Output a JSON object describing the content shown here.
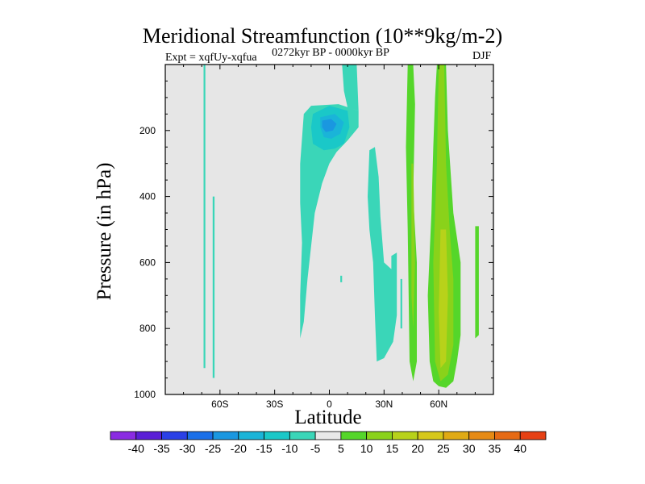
{
  "chart_data": {
    "type": "contour",
    "title": "Meridional Streamfunction (10**9kg/m-2)",
    "subtitle_left": "Expt = xqfUy-xqfua",
    "subtitle_center": "0272kyr BP - 0000kyr BP",
    "subtitle_right": "DJF",
    "xlabel": "Latitude",
    "ylabel": "Pressure (in hPa)",
    "xlim": [
      -90,
      90
    ],
    "ylim": [
      1000,
      0
    ],
    "x_ticks": [
      {
        "value": -60,
        "label": "60S"
      },
      {
        "value": -30,
        "label": "30S"
      },
      {
        "value": 0,
        "label": "0"
      },
      {
        "value": 30,
        "label": "30N"
      },
      {
        "value": 60,
        "label": "60N"
      }
    ],
    "y_ticks": [
      {
        "value": 200,
        "label": "200"
      },
      {
        "value": 400,
        "label": "400"
      },
      {
        "value": 600,
        "label": "600"
      },
      {
        "value": 800,
        "label": "800"
      },
      {
        "value": 1000,
        "label": "1000"
      }
    ],
    "background_color": "#e6e6e6",
    "colorbar": {
      "colors": [
        "#8a2be2",
        "#5a1fd6",
        "#2a40e6",
        "#1a6fe8",
        "#1a97e0",
        "#1ab4d8",
        "#1ac8c8",
        "#3ad6b8",
        "#e8e8e8",
        "#55d62a",
        "#8ad21a",
        "#b8d21a",
        "#d6c81a",
        "#e0aa14",
        "#e68a14",
        "#e66a14",
        "#e64014"
      ],
      "labels": [
        "-40",
        "-35",
        "-30",
        "-25",
        "-20",
        "-15",
        "-10",
        "-5",
        "5",
        "10",
        "15",
        "20",
        "25",
        "30",
        "35",
        "40"
      ]
    },
    "regions": [
      {
        "name": "sh-high-lat-cell-a",
        "color": "#3ad6b8",
        "points": [
          [
            -69,
            0
          ],
          [
            -68,
            0
          ],
          [
            -68,
            920
          ],
          [
            -69,
            920
          ]
        ]
      },
      {
        "name": "sh-high-lat-cell-b",
        "color": "#3ad6b8",
        "points": [
          [
            -64,
            400
          ],
          [
            -63,
            400
          ],
          [
            -63,
            950
          ],
          [
            -64,
            950
          ]
        ]
      },
      {
        "name": "tropical-upper-cell",
        "color": "#3ad6b8",
        "points": [
          [
            -14,
            150
          ],
          [
            -10,
            125
          ],
          [
            5,
            120
          ],
          [
            16,
            140
          ],
          [
            16,
            190
          ],
          [
            10,
            230
          ],
          [
            4,
            265
          ],
          [
            0,
            300
          ],
          [
            -4,
            360
          ],
          [
            -8,
            450
          ],
          [
            -12,
            650
          ],
          [
            -14,
            780
          ],
          [
            -16,
            830
          ],
          [
            -16,
            700
          ],
          [
            -15,
            540
          ],
          [
            -16,
            420
          ],
          [
            -16,
            300
          ]
        ]
      },
      {
        "name": "tropical-upper-strat-tail",
        "color": "#3ad6b8",
        "points": [
          [
            7,
            0
          ],
          [
            15,
            0
          ],
          [
            16,
            140
          ],
          [
            10,
            130
          ],
          [
            8,
            80
          ]
        ]
      },
      {
        "name": "tropical-core-minus10",
        "color": "#1ac8c8",
        "points": [
          [
            -9,
            150
          ],
          [
            0,
            125
          ],
          [
            10,
            140
          ],
          [
            11,
            190
          ],
          [
            8,
            240
          ],
          [
            3,
            255
          ],
          [
            -3,
            260
          ],
          [
            -9,
            240
          ],
          [
            -10,
            190
          ]
        ]
      },
      {
        "name": "tropical-core-minus15",
        "color": "#1ab4d8",
        "points": [
          [
            -5,
            160
          ],
          [
            3,
            150
          ],
          [
            8,
            175
          ],
          [
            6,
            210
          ],
          [
            1,
            225
          ],
          [
            -3,
            220
          ],
          [
            -5,
            190
          ]
        ]
      },
      {
        "name": "tropical-core-minus20",
        "color": "#1a97e0",
        "points": [
          [
            -4,
            170
          ],
          [
            1,
            165
          ],
          [
            4,
            180
          ],
          [
            2,
            200
          ],
          [
            -2,
            205
          ],
          [
            -4,
            190
          ]
        ]
      },
      {
        "name": "nh-subtropical-cell",
        "color": "#3ad6b8",
        "points": [
          [
            22,
            260
          ],
          [
            25,
            250
          ],
          [
            27,
            340
          ],
          [
            28,
            460
          ],
          [
            30,
            600
          ],
          [
            34,
            620
          ],
          [
            34,
            580
          ],
          [
            37,
            570
          ],
          [
            37,
            760
          ],
          [
            35,
            840
          ],
          [
            30,
            890
          ],
          [
            26,
            900
          ],
          [
            25,
            760
          ],
          [
            24,
            600
          ],
          [
            22,
            500
          ],
          [
            21,
            400
          ]
        ]
      },
      {
        "name": "nh-small-cell",
        "color": "#3ad6b8",
        "points": [
          [
            39,
            650
          ],
          [
            40,
            650
          ],
          [
            40,
            800
          ],
          [
            39,
            800
          ]
        ]
      },
      {
        "name": "nh-subtropical-dot",
        "color": "#3ad6b8",
        "points": [
          [
            6,
            640
          ],
          [
            7,
            640
          ],
          [
            7,
            660
          ],
          [
            6,
            660
          ]
        ]
      },
      {
        "name": "nh-midlat-plus5",
        "color": "#55d62a",
        "points": [
          [
            43,
            0
          ],
          [
            46,
            0
          ],
          [
            47,
            120
          ],
          [
            46,
            400
          ],
          [
            48,
            600
          ],
          [
            48,
            900
          ],
          [
            46,
            960
          ],
          [
            44,
            900
          ],
          [
            43,
            500
          ],
          [
            42,
            250
          ]
        ]
      },
      {
        "name": "nh-midlat-plus10",
        "color": "#8ad21a",
        "points": [
          [
            45,
            300
          ],
          [
            46,
            300
          ],
          [
            47,
            600
          ],
          [
            46,
            800
          ],
          [
            45,
            700
          ]
        ]
      },
      {
        "name": "nh-highlat-plus5",
        "color": "#55d62a",
        "points": [
          [
            59,
            0
          ],
          [
            64,
            0
          ],
          [
            65,
            200
          ],
          [
            68,
            450
          ],
          [
            72,
            600
          ],
          [
            72,
            820
          ],
          [
            70,
            900
          ],
          [
            68,
            960
          ],
          [
            64,
            980
          ],
          [
            60,
            975
          ],
          [
            57,
            960
          ],
          [
            55,
            900
          ],
          [
            54,
            700
          ],
          [
            56,
            450
          ],
          [
            57,
            250
          ],
          [
            58,
            100
          ]
        ]
      },
      {
        "name": "nh-highlat-plus10",
        "color": "#8ad21a",
        "points": [
          [
            60,
            0
          ],
          [
            63,
            0
          ],
          [
            64,
            300
          ],
          [
            66,
            500
          ],
          [
            68,
            650
          ],
          [
            68,
            850
          ],
          [
            65,
            940
          ],
          [
            61,
            960
          ],
          [
            58,
            900
          ],
          [
            57,
            600
          ],
          [
            59,
            300
          ]
        ]
      },
      {
        "name": "nh-highlat-plus15",
        "color": "#b8d21a",
        "points": [
          [
            61,
            500
          ],
          [
            64,
            500
          ],
          [
            65,
            700
          ],
          [
            64,
            900
          ],
          [
            61,
            920
          ],
          [
            60,
            750
          ]
        ]
      },
      {
        "name": "nh-polar-plus5",
        "color": "#55d62a",
        "points": [
          [
            80,
            490
          ],
          [
            82,
            490
          ],
          [
            82,
            820
          ],
          [
            80,
            830
          ]
        ]
      }
    ]
  }
}
